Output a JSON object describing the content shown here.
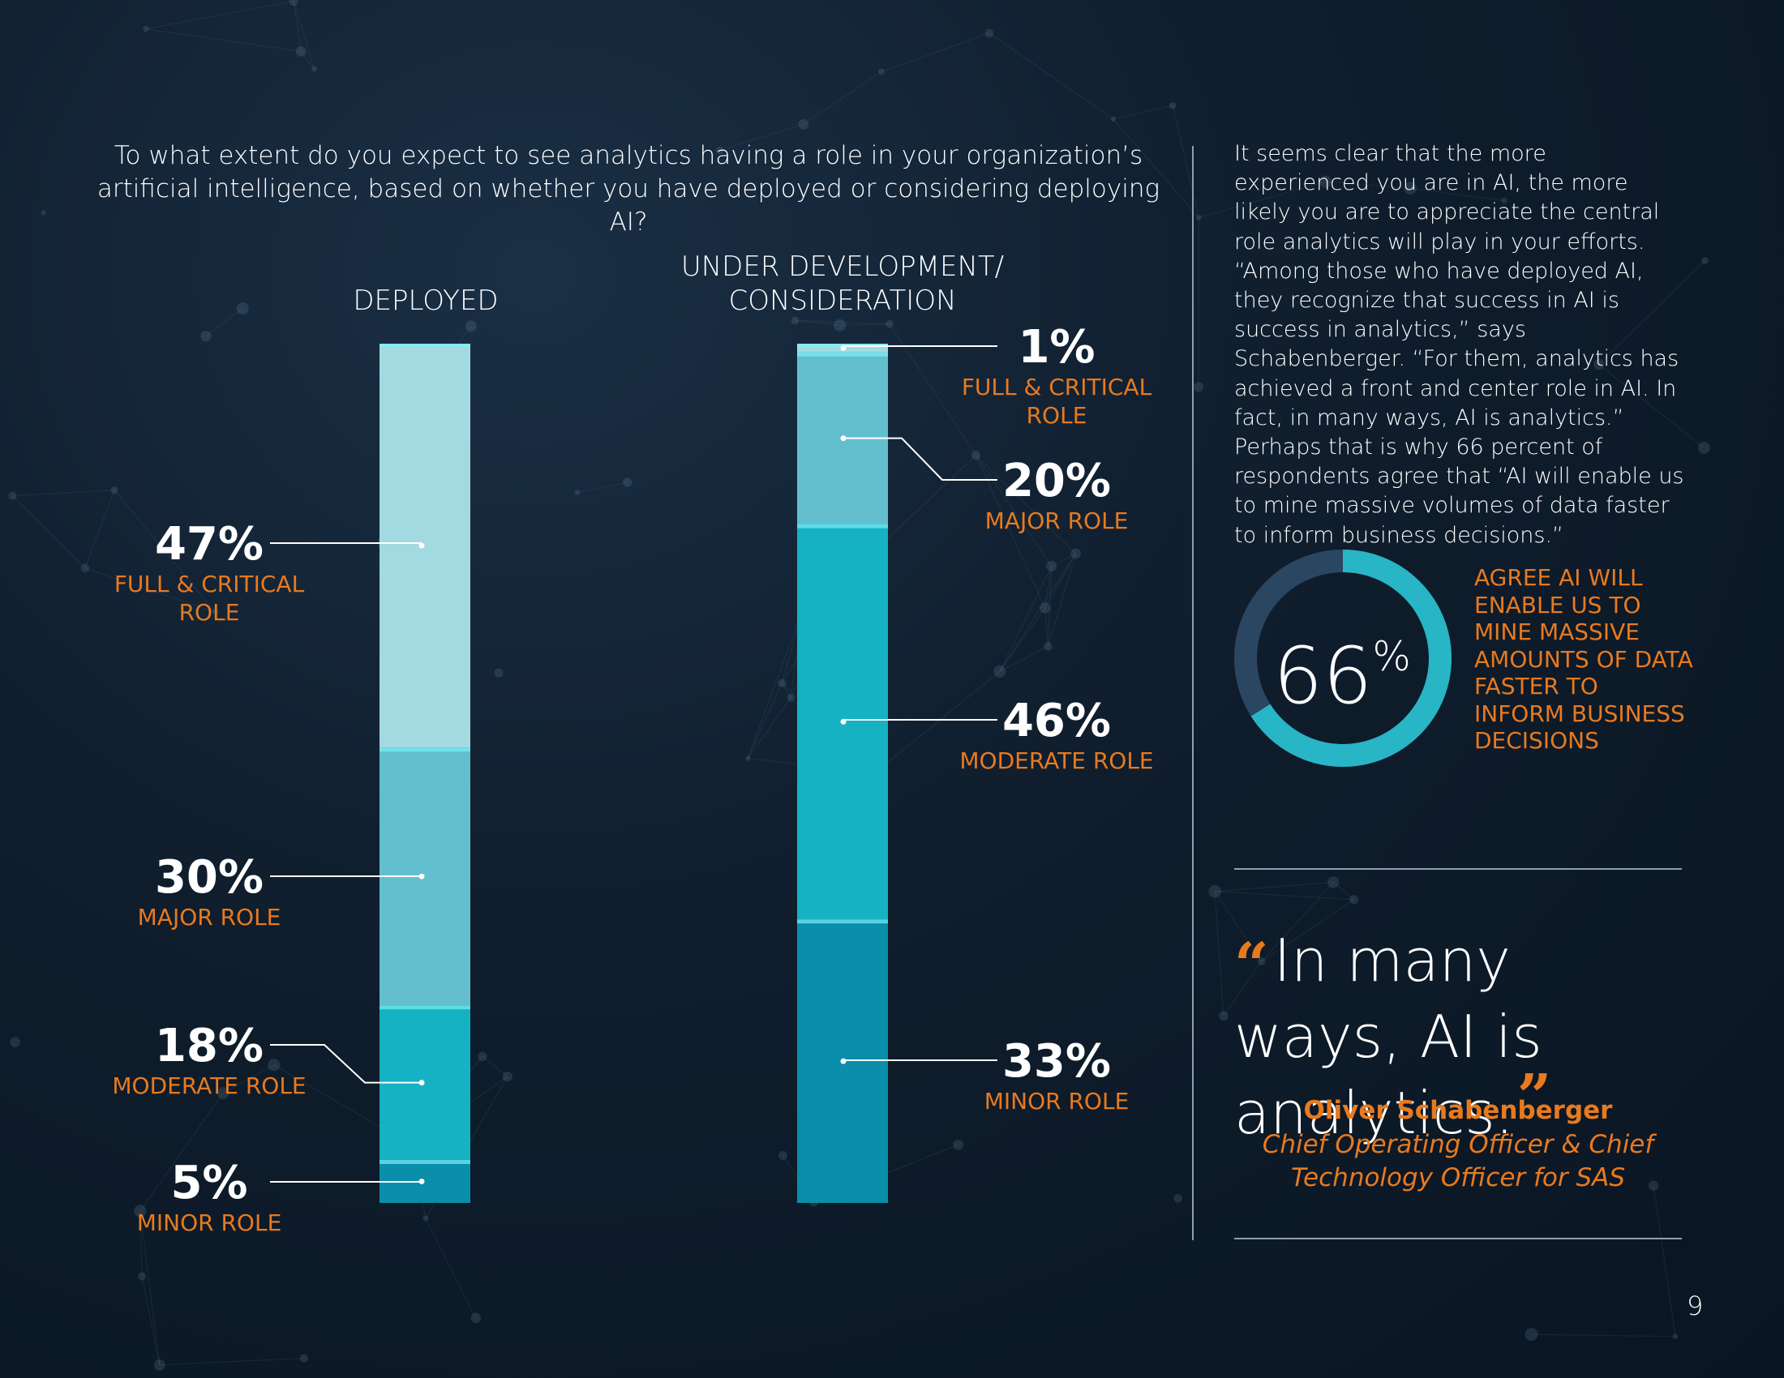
{
  "question": "To what extent do you expect to see analytics having a role in your organization’s artificial intelligence, based on whether you have deployed or considering deploying AI?",
  "chart_data": {
    "type": "bar",
    "subtype": "stacked-100",
    "title": "To what extent do you expect to see analytics having a role in your organization’s artificial intelligence, based on whether you have deployed or considering deploying AI?",
    "categories": [
      "DEPLOYED",
      "UNDER DEVELOPMENT/ CONSIDERATION"
    ],
    "category_lines": [
      [
        "DEPLOYED"
      ],
      [
        "UNDER DEVELOPMENT/",
        "CONSIDERATION"
      ]
    ],
    "series": [
      {
        "name": "FULL & CRITICAL ROLE",
        "label_lines": [
          "FULL & CRITICAL",
          "ROLE"
        ],
        "values": [
          47,
          1
        ],
        "color": "#a3d9e0"
      },
      {
        "name": "MAJOR ROLE",
        "label_lines": [
          "MAJOR ROLE"
        ],
        "values": [
          30,
          20
        ],
        "color": "#63bfcd"
      },
      {
        "name": "MODERATE ROLE",
        "label_lines": [
          "MODERATE ROLE"
        ],
        "values": [
          18,
          46
        ],
        "color": "#15b2c3"
      },
      {
        "name": "MINOR ROLE",
        "label_lines": [
          "MINOR ROLE"
        ],
        "values": [
          5,
          33
        ],
        "color": "#0a8eaa"
      }
    ],
    "ylim": [
      0,
      100
    ]
  },
  "body_text": "It seems clear that the more experienced you are in AI, the more likely you are to appreciate the central role analytics will play in your efforts. “Among those who have deployed AI, they recognize that success in AI is success in analytics,” says Schabenberger. “For them, analytics has achieved a front and center role in AI. In fact, in many ways, AI is analytics.” Perhaps that is why 66 percent of respondents agree that “AI will enable us to mine massive volumes of data faster to inform business decisions.”",
  "donut": {
    "value": 66,
    "value_text": "66",
    "suffix": "%",
    "label": "AGREE AI WILL ENABLE US TO MINE MASSIVE AMOUNTS OF DATA FASTER TO INFORM BUSINESS DECISIONS",
    "fill_color": "#28b5c6",
    "track_color": "#2b4660"
  },
  "quote": {
    "open_mark": "“",
    "text": "In many ways, AI is analytics.",
    "close_mark": "”",
    "author": "Oliver Schabenberger",
    "author_title": "Chief Operating Officer & Chief Technology Officer for SAS"
  },
  "page_number": "9"
}
